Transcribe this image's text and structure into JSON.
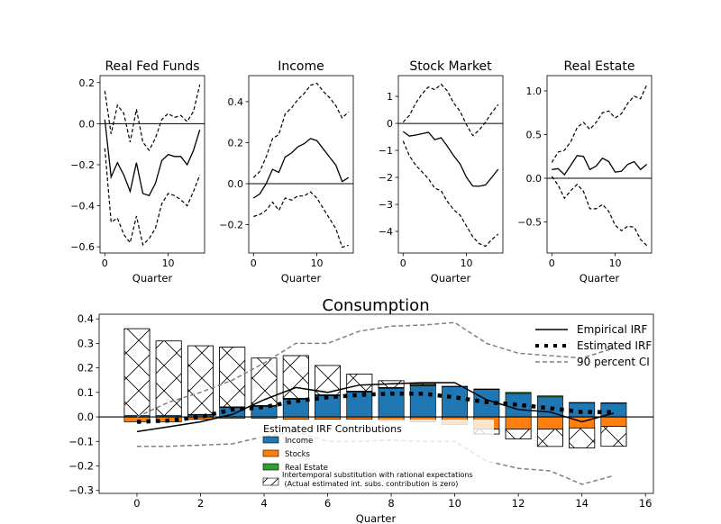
{
  "colors": {
    "income": "#1f77b4",
    "stocks": "#ff7f0e",
    "real_estate": "#2ca02c",
    "ci": "#808080",
    "line": "#000000"
  },
  "chart_data": [
    {
      "type": "line",
      "title": "Real Fed Funds",
      "xlabel": "Quarter",
      "ylabel": "",
      "xlim": [
        -0.75,
        15.75
      ],
      "ylim": [
        -0.63,
        0.234
      ],
      "xticks": [
        0,
        10
      ],
      "xtick_labels": [
        "0",
        "10"
      ],
      "yticks": [
        -0.6,
        -0.4,
        -0.2,
        0.0,
        0.2
      ],
      "ytick_labels": [
        "−0.6",
        "−0.4",
        "−0.2",
        "0.0",
        "0.2"
      ],
      "x": [
        0,
        1,
        2,
        3,
        4,
        5,
        6,
        7,
        8,
        9,
        10,
        11,
        12,
        13,
        14,
        15
      ],
      "point": [
        0.02,
        -0.26,
        -0.19,
        -0.25,
        -0.33,
        -0.19,
        -0.34,
        -0.35,
        -0.29,
        -0.18,
        -0.15,
        -0.16,
        -0.16,
        -0.2,
        -0.13,
        -0.03
      ],
      "upper": [
        0.16,
        -0.05,
        0.09,
        0.05,
        -0.09,
        0.07,
        -0.09,
        -0.13,
        -0.07,
        0.02,
        0.05,
        0.03,
        0.04,
        0.01,
        0.06,
        0.19
      ],
      "lower": [
        -0.12,
        -0.48,
        -0.46,
        -0.54,
        -0.58,
        -0.45,
        -0.59,
        -0.56,
        -0.51,
        -0.39,
        -0.34,
        -0.35,
        -0.37,
        -0.4,
        -0.33,
        -0.25
      ]
    },
    {
      "type": "line",
      "title": "Income",
      "xlabel": "Quarter",
      "ylabel": "",
      "xlim": [
        -0.75,
        15.75
      ],
      "ylim": [
        -0.338,
        0.527
      ],
      "xticks": [
        0,
        10
      ],
      "xtick_labels": [
        "0",
        "10"
      ],
      "yticks": [
        -0.2,
        0.0,
        0.2,
        0.4
      ],
      "ytick_labels": [
        "−0.2",
        "0.0",
        "0.2",
        "0.4"
      ],
      "x": [
        0,
        1,
        2,
        3,
        4,
        5,
        6,
        7,
        8,
        9,
        10,
        11,
        12,
        13,
        14,
        15
      ],
      "point": [
        -0.07,
        -0.05,
        0.0,
        0.07,
        0.055,
        0.13,
        0.15,
        0.18,
        0.195,
        0.22,
        0.21,
        0.17,
        0.13,
        0.09,
        0.01,
        0.03
      ],
      "upper": [
        0.03,
        0.06,
        0.13,
        0.22,
        0.24,
        0.34,
        0.37,
        0.41,
        0.44,
        0.48,
        0.49,
        0.45,
        0.42,
        0.38,
        0.32,
        0.35
      ],
      "lower": [
        -0.16,
        -0.15,
        -0.13,
        -0.09,
        -0.13,
        -0.07,
        -0.08,
        -0.06,
        -0.06,
        -0.04,
        -0.07,
        -0.12,
        -0.17,
        -0.22,
        -0.31,
        -0.3
      ]
    },
    {
      "type": "line",
      "title": "Stock Market",
      "xlabel": "Quarter",
      "ylabel": "",
      "xlim": [
        -0.75,
        15.75
      ],
      "ylim": [
        -4.8,
        1.77
      ],
      "xticks": [
        0,
        10
      ],
      "xtick_labels": [
        "0",
        "10"
      ],
      "yticks": [
        -4,
        -3,
        -2,
        -1,
        0,
        1
      ],
      "ytick_labels": [
        "−4",
        "−3",
        "−2",
        "−1",
        "0",
        "1"
      ],
      "x": [
        0,
        1,
        2,
        3,
        4,
        5,
        6,
        7,
        8,
        9,
        10,
        11,
        12,
        13,
        14,
        15
      ],
      "point": [
        -0.3,
        -0.47,
        -0.43,
        -0.38,
        -0.33,
        -0.6,
        -0.53,
        -0.85,
        -1.2,
        -1.5,
        -2.0,
        -2.32,
        -2.33,
        -2.28,
        -2.0,
        -1.7
      ],
      "upper": [
        0.05,
        0.3,
        0.75,
        1.1,
        1.35,
        1.25,
        1.45,
        1.2,
        0.75,
        0.45,
        -0.05,
        -0.45,
        -0.25,
        0.05,
        0.4,
        0.7
      ],
      "lower": [
        -0.65,
        -1.2,
        -1.55,
        -1.8,
        -2.05,
        -2.4,
        -2.5,
        -2.9,
        -3.2,
        -3.4,
        -3.8,
        -4.2,
        -4.45,
        -4.55,
        -4.3,
        -4.1
      ]
    },
    {
      "type": "line",
      "title": "Real Estate",
      "xlabel": "Quarter",
      "ylabel": "",
      "xlim": [
        -0.75,
        15.75
      ],
      "ylim": [
        -0.856,
        1.175
      ],
      "xticks": [
        0,
        10
      ],
      "xtick_labels": [
        "0",
        "10"
      ],
      "yticks": [
        -0.5,
        0.0,
        0.5,
        1.0
      ],
      "ytick_labels": [
        "−0.5",
        "0.0",
        "0.5",
        "1.0"
      ],
      "x": [
        0,
        1,
        2,
        3,
        4,
        5,
        6,
        7,
        8,
        9,
        10,
        11,
        12,
        13,
        14,
        15
      ],
      "point": [
        0.1,
        0.11,
        0.04,
        0.15,
        0.26,
        0.25,
        0.1,
        0.14,
        0.23,
        0.19,
        0.07,
        0.08,
        0.16,
        0.19,
        0.1,
        0.16
      ],
      "upper": [
        0.18,
        0.3,
        0.32,
        0.42,
        0.58,
        0.64,
        0.56,
        0.64,
        0.75,
        0.77,
        0.69,
        0.74,
        0.86,
        0.94,
        0.91,
        1.07
      ],
      "lower": [
        0.02,
        -0.08,
        -0.23,
        -0.14,
        -0.07,
        -0.15,
        -0.35,
        -0.35,
        -0.3,
        -0.38,
        -0.54,
        -0.6,
        -0.55,
        -0.56,
        -0.7,
        -0.77
      ]
    },
    {
      "type": "bar",
      "title": "Consumption",
      "xlabel": "Quarter",
      "ylabel": "",
      "xlim": [
        -1.19,
        16.25
      ],
      "ylim": [
        -0.312,
        0.419
      ],
      "xticks": [
        0,
        2,
        4,
        6,
        8,
        10,
        12,
        14,
        16
      ],
      "xtick_labels": [
        "0",
        "2",
        "4",
        "6",
        "8",
        "10",
        "12",
        "14",
        "16"
      ],
      "yticks": [
        -0.3,
        -0.2,
        -0.1,
        0.0,
        0.1,
        0.2,
        0.3,
        0.4
      ],
      "ytick_labels": [
        "−0.3",
        "−0.2",
        "−0.1",
        "0.0",
        "0.1",
        "0.2",
        "0.3",
        "0.4"
      ],
      "x": [
        0,
        1,
        2,
        3,
        4,
        5,
        6,
        7,
        8,
        9,
        10,
        11,
        12,
        13,
        14,
        15
      ],
      "contributions": {
        "income": [
          0.005,
          0.005,
          0.008,
          0.038,
          0.042,
          0.072,
          0.087,
          0.102,
          0.117,
          0.127,
          0.123,
          0.112,
          0.096,
          0.082,
          0.057,
          0.056
        ],
        "stocks": [
          -0.02,
          -0.02,
          -0.01,
          -0.005,
          -0.005,
          -0.01,
          -0.01,
          -0.01,
          -0.015,
          -0.02,
          -0.03,
          -0.05,
          -0.05,
          -0.05,
          -0.045,
          -0.038
        ],
        "real_estate": [
          0,
          0,
          0.002,
          0.003,
          0.004,
          0.004,
          0.003,
          0.003,
          0.003,
          0.003,
          0.002,
          0.002,
          0.004,
          0.004,
          0.002,
          0.002
        ],
        "intertemporal": [
          0.355,
          0.305,
          0.28,
          0.244,
          0.194,
          0.174,
          0.12,
          0.07,
          0.028,
          0.005,
          0,
          -0.02,
          -0.04,
          -0.07,
          -0.082,
          -0.082
        ]
      },
      "empirical_irf": [
        -0.06,
        -0.04,
        -0.02,
        0.01,
        0.07,
        0.12,
        0.1,
        0.13,
        0.135,
        0.14,
        0.14,
        0.07,
        0.03,
        0.02,
        -0.02,
        0.015
      ],
      "estimated_irf": [
        -0.02,
        -0.015,
        0.0,
        0.03,
        0.04,
        0.065,
        0.08,
        0.09,
        0.095,
        0.095,
        0.08,
        0.06,
        0.05,
        0.035,
        0.02,
        0.02
      ],
      "ci_upper": [
        0,
        0.06,
        0.1,
        0.15,
        0.22,
        0.3,
        0.3,
        0.35,
        0.37,
        0.375,
        0.385,
        0.3,
        0.26,
        0.25,
        0.24,
        0.28
      ],
      "ci_lower": [
        -0.12,
        -0.12,
        -0.115,
        -0.11,
        -0.08,
        -0.06,
        -0.1,
        -0.1,
        -0.095,
        -0.1,
        -0.1,
        -0.18,
        -0.21,
        -0.22,
        -0.275,
        -0.24
      ],
      "legend_lines": {
        "placement": "top-right",
        "entries": [
          "Empirical IRF",
          "Estimated IRF",
          "90 percent CI"
        ]
      },
      "legend_contributions": {
        "placement": "lower-center",
        "title": "Estimated IRF Contributions",
        "entries": [
          "Income",
          "Stocks",
          "Real Estate"
        ],
        "hatch_entry_line1": "Intertemporal substitution with rational expectations",
        "hatch_entry_line2": " (Actual estimated int. subs. contribution is zero)"
      }
    }
  ]
}
